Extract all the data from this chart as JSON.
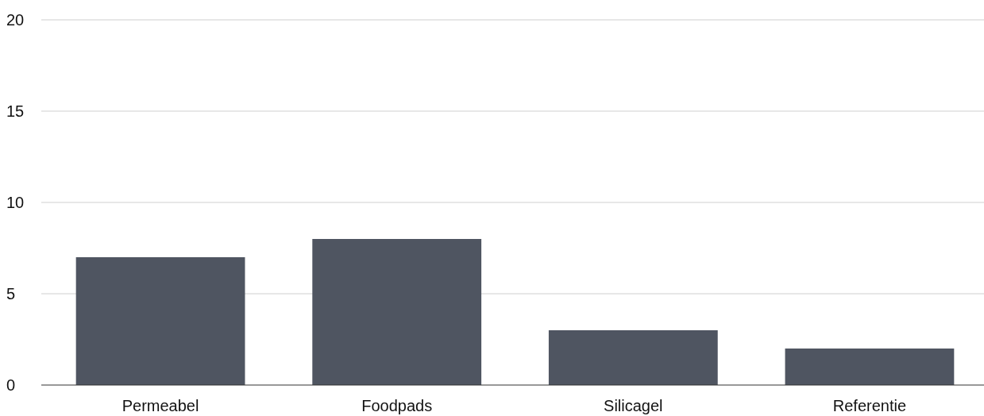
{
  "chart_data": {
    "type": "bar",
    "categories": [
      "Permeabel",
      "Foodpads",
      "Silicagel",
      "Referentie"
    ],
    "values": [
      7,
      8,
      3,
      2
    ],
    "color": "#4f5561",
    "ylim": [
      0,
      20
    ],
    "yticks": [
      0,
      5,
      10,
      15,
      20
    ],
    "grid": "y"
  }
}
